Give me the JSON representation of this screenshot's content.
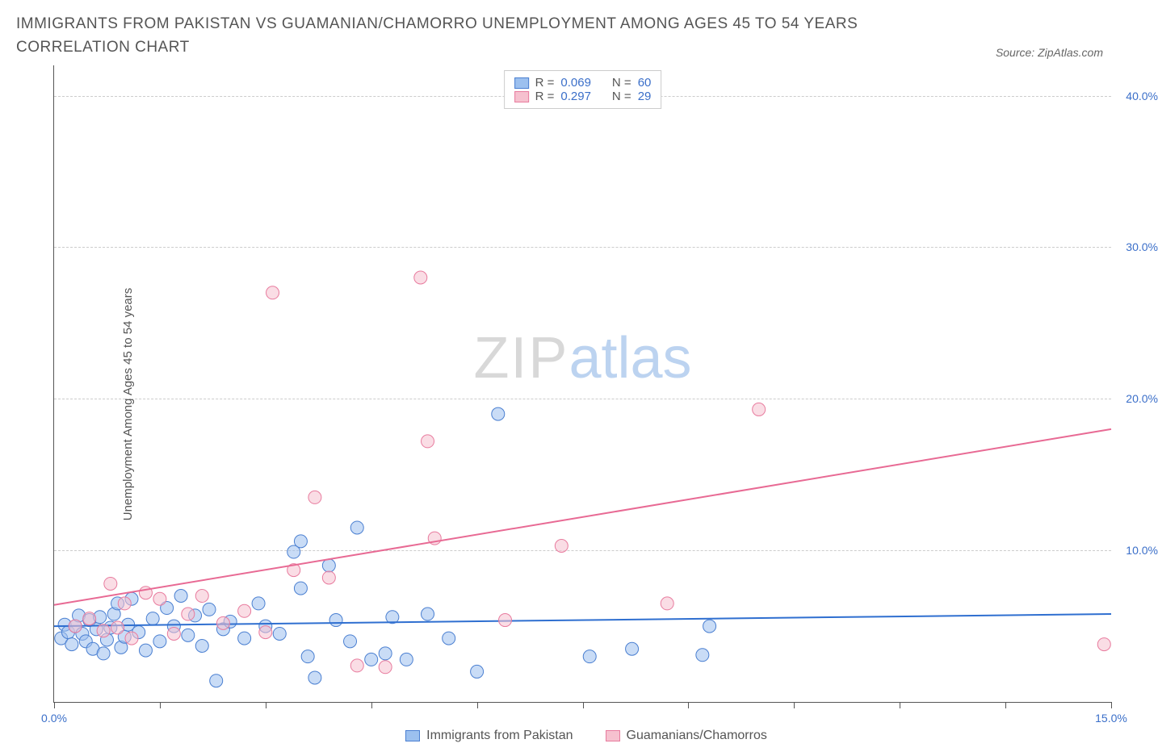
{
  "title": "IMMIGRANTS FROM PAKISTAN VS GUAMANIAN/CHAMORRO UNEMPLOYMENT AMONG AGES 45 TO 54 YEARS CORRELATION CHART",
  "source_label": "Source: ZipAtlas.com",
  "ylabel": "Unemployment Among Ages 45 to 54 years",
  "watermark_a": "ZIP",
  "watermark_b": "atlas",
  "chart": {
    "type": "scatter",
    "background_color": "#ffffff",
    "grid_color": "#cccccc",
    "axis_color": "#555555",
    "xlim": [
      0,
      15
    ],
    "ylim": [
      0,
      42
    ],
    "xticks": [
      0,
      1.5,
      3,
      4.5,
      6,
      7.5,
      9,
      10.5,
      12,
      13.5,
      15
    ],
    "xtick_labels": {
      "0": "0.0%",
      "15": "15.0%"
    },
    "yticks": [
      10,
      20,
      30,
      40
    ],
    "ytick_labels": [
      "10.0%",
      "20.0%",
      "30.0%",
      "40.0%"
    ],
    "marker_radius": 8,
    "marker_opacity": 0.55,
    "line_width": 2,
    "series": [
      {
        "name": "Immigrants from Pakistan",
        "fill": "#9cc0ef",
        "stroke": "#4a7fd1",
        "line_color": "#2f6fd0",
        "R": "0.069",
        "N": "60",
        "trend": {
          "x1": 0,
          "y1": 5.0,
          "x2": 15,
          "y2": 5.8
        },
        "points": [
          [
            0.1,
            4.2
          ],
          [
            0.15,
            5.1
          ],
          [
            0.2,
            4.6
          ],
          [
            0.25,
            3.8
          ],
          [
            0.3,
            5.0
          ],
          [
            0.35,
            5.7
          ],
          [
            0.4,
            4.5
          ],
          [
            0.45,
            4.0
          ],
          [
            0.5,
            5.4
          ],
          [
            0.55,
            3.5
          ],
          [
            0.6,
            4.8
          ],
          [
            0.65,
            5.6
          ],
          [
            0.7,
            3.2
          ],
          [
            0.75,
            4.1
          ],
          [
            0.8,
            4.9
          ],
          [
            0.85,
            5.8
          ],
          [
            0.9,
            6.5
          ],
          [
            0.95,
            3.6
          ],
          [
            1.0,
            4.3
          ],
          [
            1.05,
            5.1
          ],
          [
            1.1,
            6.8
          ],
          [
            1.2,
            4.6
          ],
          [
            1.3,
            3.4
          ],
          [
            1.4,
            5.5
          ],
          [
            1.5,
            4.0
          ],
          [
            1.6,
            6.2
          ],
          [
            1.7,
            5.0
          ],
          [
            1.8,
            7.0
          ],
          [
            1.9,
            4.4
          ],
          [
            2.0,
            5.7
          ],
          [
            2.1,
            3.7
          ],
          [
            2.2,
            6.1
          ],
          [
            2.3,
            1.4
          ],
          [
            2.4,
            4.8
          ],
          [
            2.5,
            5.3
          ],
          [
            2.7,
            4.2
          ],
          [
            2.9,
            6.5
          ],
          [
            3.0,
            5.0
          ],
          [
            3.2,
            4.5
          ],
          [
            3.4,
            9.9
          ],
          [
            3.5,
            7.5
          ],
          [
            3.5,
            10.6
          ],
          [
            3.6,
            3.0
          ],
          [
            3.7,
            1.6
          ],
          [
            3.9,
            9.0
          ],
          [
            4.0,
            5.4
          ],
          [
            4.2,
            4.0
          ],
          [
            4.3,
            11.5
          ],
          [
            4.5,
            2.8
          ],
          [
            4.7,
            3.2
          ],
          [
            4.8,
            5.6
          ],
          [
            5.0,
            2.8
          ],
          [
            5.3,
            5.8
          ],
          [
            5.6,
            4.2
          ],
          [
            6.0,
            2.0
          ],
          [
            6.3,
            19.0
          ],
          [
            7.6,
            3.0
          ],
          [
            8.2,
            3.5
          ],
          [
            9.2,
            3.1
          ],
          [
            9.3,
            5.0
          ]
        ]
      },
      {
        "name": "Guamanians/Chamorros",
        "fill": "#f6c1cf",
        "stroke": "#e87b9e",
        "line_color": "#e86a94",
        "R": "0.297",
        "N": "29",
        "trend": {
          "x1": 0,
          "y1": 6.4,
          "x2": 15,
          "y2": 18.0
        },
        "points": [
          [
            0.3,
            5.0
          ],
          [
            0.5,
            5.5
          ],
          [
            0.7,
            4.7
          ],
          [
            0.8,
            7.8
          ],
          [
            0.9,
            4.9
          ],
          [
            1.0,
            6.5
          ],
          [
            1.1,
            4.2
          ],
          [
            1.3,
            7.2
          ],
          [
            1.5,
            6.8
          ],
          [
            1.7,
            4.5
          ],
          [
            1.9,
            5.8
          ],
          [
            2.1,
            7.0
          ],
          [
            2.4,
            5.2
          ],
          [
            2.7,
            6.0
          ],
          [
            3.0,
            4.6
          ],
          [
            3.1,
            27.0
          ],
          [
            3.4,
            8.7
          ],
          [
            3.7,
            13.5
          ],
          [
            3.9,
            8.2
          ],
          [
            4.3,
            2.4
          ],
          [
            4.7,
            2.3
          ],
          [
            5.2,
            28.0
          ],
          [
            5.3,
            17.2
          ],
          [
            5.4,
            10.8
          ],
          [
            6.4,
            5.4
          ],
          [
            7.2,
            10.3
          ],
          [
            8.7,
            6.5
          ],
          [
            10.0,
            19.3
          ],
          [
            14.9,
            3.8
          ]
        ]
      }
    ]
  },
  "legend_top": [
    {
      "swatch_fill": "#9cc0ef",
      "swatch_stroke": "#4a7fd1",
      "r_label": "R =",
      "r_val": "0.069",
      "n_label": "N =",
      "n_val": "60"
    },
    {
      "swatch_fill": "#f6c1cf",
      "swatch_stroke": "#e87b9e",
      "r_label": "R =",
      "r_val": "0.297",
      "n_label": "N =",
      "n_val": "29"
    }
  ],
  "legend_bottom": [
    {
      "swatch_fill": "#9cc0ef",
      "swatch_stroke": "#4a7fd1",
      "label": "Immigrants from Pakistan"
    },
    {
      "swatch_fill": "#f6c1cf",
      "swatch_stroke": "#e87b9e",
      "label": "Guamanians/Chamorros"
    }
  ]
}
